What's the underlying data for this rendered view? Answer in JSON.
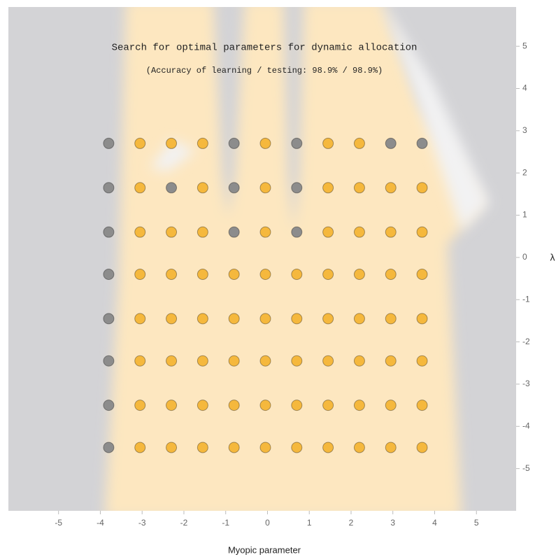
{
  "chart_data": {
    "type": "scatter",
    "title": "Search for optimal parameters for dynamic allocation",
    "subtitle": "(Accuracy of learning / testing: 98.9% / 98.9%)",
    "xlabel": "Myopic parameter",
    "ylabel": "λ",
    "xlim": [
      -6.2,
      5.95
    ],
    "ylim": [
      -6,
      5.93
    ],
    "xticks": [
      -5,
      -4,
      -3,
      -2,
      -1,
      0,
      1,
      2,
      3,
      4,
      5
    ],
    "yticks": [
      -5,
      -4,
      -3,
      -2,
      -1,
      0,
      1,
      2,
      3,
      4,
      5
    ],
    "series": [
      {
        "color": "#f5b83d",
        "x": [
          -3.05,
          -1.55,
          -0.05,
          1.45,
          2.2,
          -3.05,
          -1.55,
          -0.05,
          1.45,
          2.2,
          2.95,
          3.7,
          -3.05,
          -2.3,
          -1.55,
          -0.05,
          1.45,
          2.2,
          2.95,
          3.7,
          -3.05,
          -2.3,
          -1.55,
          -0.8,
          -0.05,
          0.7,
          1.45,
          2.2,
          2.95,
          3.7,
          -3.05,
          -2.3,
          -1.55,
          -0.8,
          -0.05,
          0.7,
          1.45,
          2.2,
          2.95,
          3.7,
          -3.05,
          -2.3,
          -1.55,
          -0.8,
          -0.05,
          0.7,
          1.45,
          2.2,
          2.95,
          3.7,
          -3.05,
          -2.3,
          -1.55,
          -0.8,
          -0.05,
          0.7,
          1.45,
          2.2,
          2.95,
          3.7,
          -3.05,
          -2.3,
          -1.55,
          -0.8,
          -0.05,
          0.7,
          1.45,
          2.2,
          2.95,
          3.7,
          -2.3
        ],
        "y": [
          2.7,
          2.7,
          2.7,
          2.7,
          2.7,
          1.65,
          1.65,
          1.65,
          1.65,
          1.65,
          1.65,
          1.65,
          0.6,
          0.6,
          0.6,
          0.6,
          0.6,
          0.6,
          0.6,
          0.6,
          -0.4,
          -0.4,
          -0.4,
          -0.4,
          -0.4,
          -0.4,
          -0.4,
          -0.4,
          -0.4,
          -0.4,
          -1.45,
          -1.45,
          -1.45,
          -1.45,
          -1.45,
          -1.45,
          -1.45,
          -1.45,
          -1.45,
          -1.45,
          -2.45,
          -2.45,
          -2.45,
          -2.45,
          -2.45,
          -2.45,
          -2.45,
          -2.45,
          -2.45,
          -2.45,
          -3.5,
          -3.5,
          -3.5,
          -3.5,
          -3.5,
          -3.5,
          -3.5,
          -3.5,
          -3.5,
          -3.5,
          -4.5,
          -4.5,
          -4.5,
          -4.5,
          -4.5,
          -4.5,
          -4.5,
          -4.5,
          -4.5,
          -4.5,
          2.7
        ]
      },
      {
        "color": "#8c8c8c",
        "x": [
          -3.8,
          -0.8,
          0.7,
          2.95,
          3.7,
          -3.8,
          -2.3,
          -0.8,
          0.7,
          -3.8,
          -0.8,
          0.7,
          -3.8,
          -3.8,
          -3.8,
          -3.8,
          -3.8
        ],
        "y": [
          2.7,
          2.7,
          2.7,
          2.7,
          2.7,
          1.65,
          1.65,
          1.65,
          1.65,
          0.6,
          0.6,
          0.6,
          -0.4,
          -1.45,
          -2.45,
          -3.5,
          -4.5
        ]
      }
    ]
  }
}
